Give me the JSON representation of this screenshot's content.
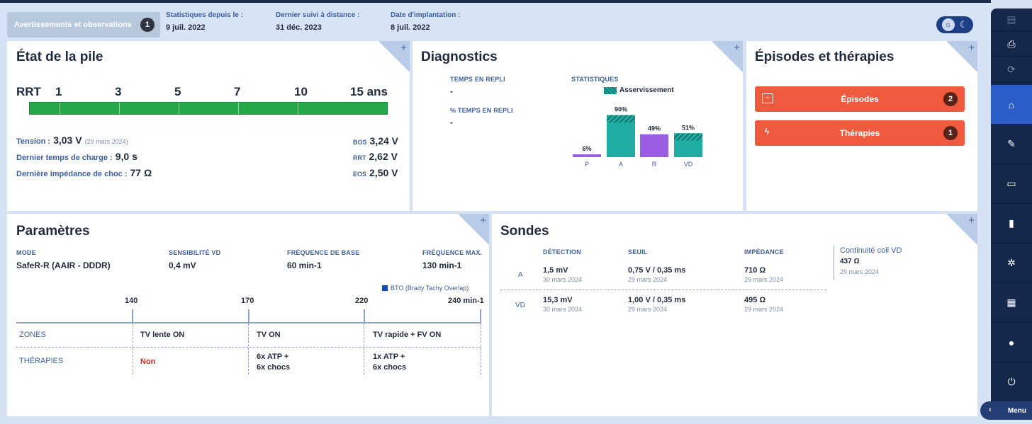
{
  "top": {
    "warnings_label": "Avertissements et observations",
    "warnings_count": "1",
    "stats_label": "Statistiques depuis le :",
    "stats_value": "9 juil. 2022",
    "remote_label": "Dernier suivi à distance :",
    "remote_value": "31 déc. 2023",
    "implant_label": "Date d'implantation :",
    "implant_value": "8 juil. 2022"
  },
  "battery": {
    "title": "État de la pile",
    "scale": [
      "RRT",
      "1",
      "3",
      "5",
      "7",
      "10",
      "15 ans"
    ],
    "tension_label": "Tension :",
    "tension_value": "3,03 V",
    "tension_date": "(29 mars 2024)",
    "charge_label": "Dernier temps de charge :",
    "charge_value": "9,0 s",
    "imp_label": "Dernière impédance de choc :",
    "imp_value": "77 Ω",
    "bos_label": "BOS",
    "bos_value": "3,24 V",
    "rrt_label": "RRT",
    "rrt_value": "2,62 V",
    "eos_label": "EOS",
    "eos_value": "2,50 V"
  },
  "diagnostics": {
    "title": "Diagnostics",
    "repli_label": "TEMPS EN REPLI",
    "repli_value": "-",
    "pct_label": "% TEMPS EN REPLI",
    "pct_value": "-",
    "stats_label": "STATISTIQUES",
    "legend": "Asservissement"
  },
  "chart_data": {
    "type": "bar",
    "categories": [
      "P",
      "A",
      "R",
      "VD"
    ],
    "values": [
      6,
      90,
      49,
      51
    ],
    "data_labels": [
      "6%",
      "90%",
      "49%",
      "51%"
    ],
    "colors": [
      "#9b5de5",
      "#1fada3",
      "#9b5de5",
      "#1fada3"
    ],
    "legend": [
      "Asservissement"
    ],
    "ylim": [
      0,
      100
    ]
  },
  "episodes": {
    "title": "Épisodes et thérapies",
    "episodes_label": "Épisodes",
    "episodes_count": "2",
    "therapies_label": "Thérapies",
    "therapies_count": "1"
  },
  "params": {
    "title": "Paramètres",
    "mode_label": "MODE",
    "mode_value": "SafeR-R (AAIR - DDDR)",
    "sens_label": "SENSIBILITÉ VD",
    "sens_value": "0,4 mV",
    "base_label": "FRÉQUENCE DE BASE",
    "base_value": "60 min-1",
    "max_label": "FRÉQUENCE MAX.",
    "max_value": "130 min-1",
    "bto": "BTO (Brady Tachy Overlap)",
    "rates": [
      "140",
      "170",
      "220",
      "240 min-1"
    ],
    "zones_label": "ZONES",
    "zones": [
      "TV lente ON",
      "TV ON",
      "TV rapide + FV ON"
    ],
    "ther_label": "THÉRAPIES",
    "ther_none": "Non",
    "ther_tv1": "6x ATP +",
    "ther_tv2": "6x chocs",
    "ther_fv1": "1x ATP +",
    "ther_fv2": "6x chocs"
  },
  "leads": {
    "title": "Sondes",
    "h_det": "DÉTECTION",
    "h_seuil": "SEUIL",
    "h_imp": "IMPÉDANCE",
    "coil_label": "Continuité coil VD",
    "coil_value": "437 Ω",
    "coil_date": "29 mars 2024",
    "rows": [
      {
        "ch": "A",
        "det": "1,5 mV",
        "det_date": "30 mars 2024",
        "seuil": "0,75 V / 0,35 ms",
        "seuil_date": "29 mars 2024",
        "imp": "710 Ω",
        "imp_date": "29 mars 2024"
      },
      {
        "ch": "VD",
        "det": "15,3 mV",
        "det_date": "30 mars 2024",
        "seuil": "1,00 V / 0,35 ms",
        "seuil_date": "29 mars 2024",
        "imp": "495 Ω",
        "imp_date": "29 mars 2024"
      }
    ]
  },
  "sidebar": {
    "menu_label": "Menu"
  }
}
